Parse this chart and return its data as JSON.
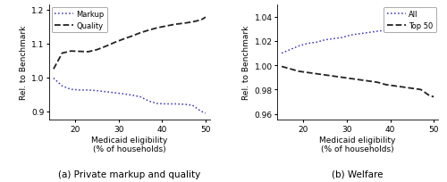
{
  "x_left": [
    15,
    17,
    19,
    21,
    23,
    25,
    27,
    29,
    31,
    33,
    35,
    37,
    39,
    41,
    43,
    45,
    47,
    49,
    50
  ],
  "markup_y": [
    0.998,
    0.975,
    0.965,
    0.963,
    0.963,
    0.961,
    0.958,
    0.955,
    0.952,
    0.948,
    0.943,
    0.93,
    0.923,
    0.922,
    0.922,
    0.921,
    0.918,
    0.9,
    0.895
  ],
  "quality_y": [
    1.025,
    1.072,
    1.078,
    1.077,
    1.076,
    1.082,
    1.092,
    1.103,
    1.113,
    1.122,
    1.132,
    1.14,
    1.147,
    1.152,
    1.157,
    1.16,
    1.164,
    1.17,
    1.178
  ],
  "x_right": [
    15,
    17,
    19,
    21,
    23,
    25,
    27,
    29,
    31,
    33,
    35,
    37,
    39,
    41,
    43,
    45,
    47,
    49,
    50
  ],
  "all_y": [
    1.01,
    1.013,
    1.016,
    1.018,
    1.019,
    1.021,
    1.022,
    1.023,
    1.025,
    1.026,
    1.027,
    1.028,
    1.029,
    1.03,
    1.03,
    1.031,
    1.031,
    1.032,
    1.033
  ],
  "top50_y": [
    0.999,
    0.997,
    0.995,
    0.994,
    0.993,
    0.992,
    0.991,
    0.99,
    0.989,
    0.988,
    0.987,
    0.986,
    0.984,
    0.983,
    0.982,
    0.981,
    0.98,
    0.975,
    0.974
  ],
  "left_ylim": [
    0.875,
    1.215
  ],
  "left_yticks": [
    0.9,
    1.0,
    1.1,
    1.2
  ],
  "right_ylim": [
    0.955,
    1.05
  ],
  "right_yticks": [
    0.96,
    0.98,
    1.0,
    1.02,
    1.04
  ],
  "xlim": [
    14,
    51
  ],
  "xticks": [
    20,
    30,
    40,
    50
  ],
  "xlabel_line1": "Medicaid eligibility",
  "xlabel_line2": "(% of households)",
  "ylabel": "Rel. to Benchmark",
  "left_legend_labels": [
    "Markup",
    "Quality"
  ],
  "right_legend_labels": [
    "All",
    "Top 50"
  ],
  "caption_left": "(a) Private markup and quality",
  "caption_right": "(b) Welfare",
  "markup_color": "#3333bb",
  "quality_color": "#222222",
  "all_color": "#3333bb",
  "top50_color": "#222222",
  "bg_color": "#ffffff"
}
